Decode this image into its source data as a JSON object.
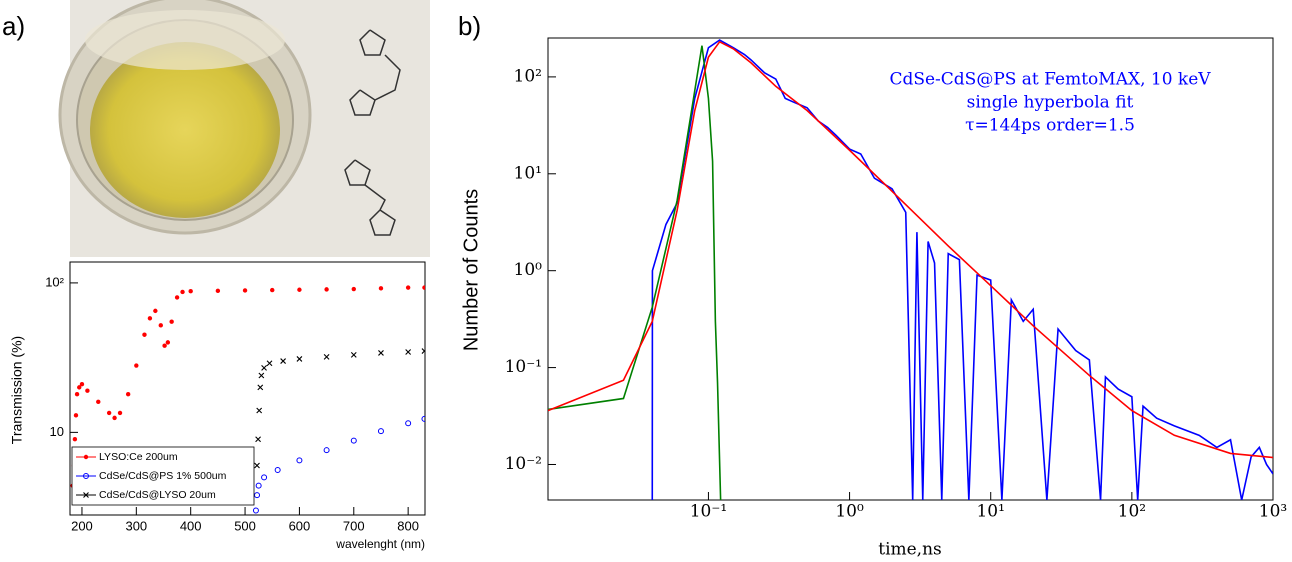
{
  "chart_data": [
    {
      "type": "scatter",
      "label": "a)",
      "xlabel": "wavelenght (nm)",
      "ylabel": "Transmission (%)",
      "xlim": [
        178,
        831
      ],
      "ylim": [
        2.8,
        138
      ],
      "ylog": true,
      "xticks": [
        200,
        300,
        400,
        500,
        600,
        700,
        800
      ],
      "yticks": [
        10,
        {
          "value": 100,
          "label": "10²"
        }
      ],
      "legend": "lower left",
      "series": [
        {
          "name": "LYSO:Ce 200um",
          "color": "#ff0000",
          "marker": "dot",
          "x": [
            183,
            185,
            187,
            189,
            191,
            195,
            200,
            210,
            230,
            250,
            260,
            270,
            285,
            300,
            315,
            325,
            335,
            345,
            352,
            358,
            365,
            375,
            385,
            400,
            450,
            500,
            550,
            600,
            650,
            700,
            750,
            800,
            830
          ],
          "values": [
            4.4,
            6,
            9,
            13,
            18,
            20,
            21,
            19,
            16,
            13.5,
            12.5,
            13.5,
            18,
            28,
            45,
            58,
            65,
            52,
            38,
            40,
            55,
            80,
            87,
            88,
            88.5,
            89,
            89.5,
            90,
            90.5,
            91,
            92,
            93,
            93
          ]
        },
        {
          "name": "CdSe/CdS@PS 1% 500um",
          "color": "#0000ff",
          "marker": "circle",
          "x": [
            520,
            522,
            525,
            535,
            560,
            600,
            650,
            700,
            750,
            800,
            830
          ],
          "values": [
            3.0,
            3.8,
            4.4,
            5.0,
            5.6,
            6.5,
            7.6,
            8.8,
            10.2,
            11.5,
            12.3
          ]
        },
        {
          "name": "CdSe/CdS@LYSO 20um",
          "color": "#000000",
          "marker": "x",
          "x": [
            522,
            524,
            526,
            528,
            530,
            535,
            545,
            570,
            600,
            650,
            700,
            750,
            800,
            830
          ],
          "values": [
            6,
            9,
            14,
            20,
            24,
            27,
            29,
            30,
            31,
            32,
            33,
            34,
            34.5,
            35
          ]
        }
      ]
    },
    {
      "type": "line",
      "label": "b)",
      "xlabel": "time,ns",
      "ylabel": "Number of Counts",
      "annotation": [
        "CdSe-CdS@PS at FemtoMAX, 10 keV",
        "single hyperbola fit",
        "τ=144ps order=1.5"
      ],
      "annotation_color": "#0000ff",
      "xlim": [
        0.0073,
        1000
      ],
      "ylim": [
        0.0043,
        252
      ],
      "xlog": true,
      "ylog": true,
      "xticks": [
        {
          "value": 0.1,
          "label": "10⁻¹"
        },
        {
          "value": 1,
          "label": "10⁰"
        },
        {
          "value": 10,
          "label": "10¹"
        },
        {
          "value": 100,
          "label": "10²"
        },
        {
          "value": 1000,
          "label": "10³"
        }
      ],
      "yticks": [
        {
          "value": 0.01,
          "label": "10⁻²"
        },
        {
          "value": 0.1,
          "label": "10⁻¹"
        },
        {
          "value": 1,
          "label": "10⁰"
        },
        {
          "value": 10,
          "label": "10¹"
        },
        {
          "value": 100,
          "label": "10²"
        }
      ],
      "series": [
        {
          "color": "#0000ff",
          "x": [
            0.04,
            0.0401,
            0.05,
            0.06,
            0.08,
            0.1,
            0.12,
            0.15,
            0.18,
            0.2,
            0.25,
            0.3,
            0.35,
            0.4,
            0.5,
            0.6,
            0.7,
            0.8,
            1.0,
            1.2,
            1.5,
            2,
            2.5,
            2.8,
            3.0,
            3.3,
            3.6,
            4,
            4.5,
            5,
            6,
            7,
            8,
            10,
            12,
            14,
            17,
            20,
            25,
            30,
            40,
            50,
            60,
            65,
            80,
            100,
            110,
            120,
            150,
            200,
            300,
            400,
            500,
            600,
            700,
            800,
            900,
            1000
          ],
          "values": [
            0.0043,
            1.0,
            3,
            5,
            60,
            200,
            240,
            200,
            170,
            150,
            110,
            95,
            60,
            55,
            48,
            35,
            30,
            25,
            18,
            16,
            9,
            7,
            4,
            0.0043,
            2.5,
            0.0043,
            2,
            1.2,
            0.0043,
            1.5,
            1.3,
            0.0043,
            0.9,
            0.8,
            0.0043,
            0.5,
            0.3,
            0.4,
            0.0043,
            0.25,
            0.15,
            0.12,
            0.0043,
            0.08,
            0.06,
            0.05,
            0.0043,
            0.04,
            0.03,
            0.025,
            0.02,
            0.015,
            0.018,
            0.0043,
            0.012,
            0.015,
            0.01,
            0.008
          ]
        },
        {
          "color": "#008000",
          "x": [
            0.0073,
            0.025,
            0.04,
            0.06,
            0.08,
            0.09,
            0.1,
            0.107,
            0.112,
            0.116,
            0.122
          ],
          "values": [
            0.037,
            0.048,
            0.42,
            5.3,
            72,
            210,
            60,
            13.5,
            0.3,
            0.07,
            0.0043
          ]
        },
        {
          "color": "#ff0000",
          "x": [
            0.0073,
            0.025,
            0.04,
            0.06,
            0.08,
            0.1,
            0.12,
            0.15,
            0.2,
            0.3,
            0.5,
            1,
            2,
            5,
            10,
            20,
            50,
            100,
            200,
            500,
            1000
          ],
          "values": [
            0.036,
            0.074,
            0.3,
            4.2,
            45,
            160,
            230,
            195,
            140,
            80,
            45,
            17.5,
            6.6,
            1.8,
            0.7,
            0.27,
            0.083,
            0.036,
            0.02,
            0.013,
            0.0118
          ]
        }
      ]
    }
  ]
}
